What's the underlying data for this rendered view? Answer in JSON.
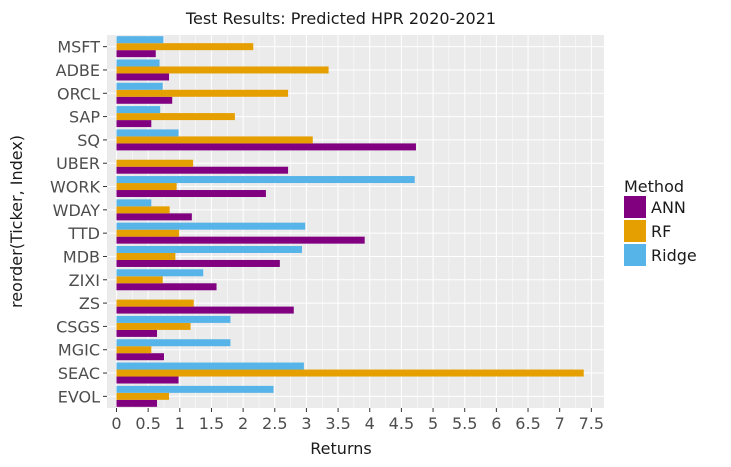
{
  "chart_data": {
    "type": "bar",
    "orientation": "horizontal",
    "title": "Test Results: Predicted HPR 2020-2021",
    "xlabel": "Returns",
    "ylabel": "reorder(Ticker, Index)",
    "xlim": [
      -0.15,
      7.7
    ],
    "xticks": [
      "0",
      "0.5",
      "1",
      "1.5",
      "2",
      "2.5",
      "3",
      "3.5",
      "4",
      "4.5",
      "5",
      "5.5",
      "6",
      "6.5",
      "7",
      "7.5"
    ],
    "grid": true,
    "legend_position": "right",
    "legend_title": "Method",
    "categories": [
      "MSFT",
      "ADBE",
      "ORCL",
      "SAP",
      "SQ",
      "UBER",
      "WORK",
      "WDAY",
      "TTD",
      "MDB",
      "ZIXI",
      "ZS",
      "CSGS",
      "MGIC",
      "SEAC",
      "EVOL"
    ],
    "series": [
      {
        "name": "ANN",
        "color": "#800080",
        "values": [
          0.62,
          0.83,
          0.88,
          0.55,
          4.73,
          2.71,
          2.36,
          1.19,
          3.92,
          2.58,
          1.58,
          2.8,
          0.64,
          0.75,
          0.98,
          0.64
        ]
      },
      {
        "name": "RF",
        "color": "#E69F00",
        "values": [
          2.16,
          3.35,
          2.71,
          1.87,
          3.1,
          1.21,
          0.95,
          0.84,
          0.99,
          0.93,
          0.73,
          1.22,
          1.17,
          0.55,
          7.38,
          0.83
        ]
      },
      {
        "name": "Ridge",
        "color": "#56B4E9",
        "values": [
          0.74,
          0.68,
          0.73,
          0.69,
          0.98,
          0.0,
          4.71,
          0.55,
          2.98,
          2.93,
          1.37,
          0.0,
          1.8,
          1.8,
          2.96,
          2.48
        ]
      }
    ]
  }
}
